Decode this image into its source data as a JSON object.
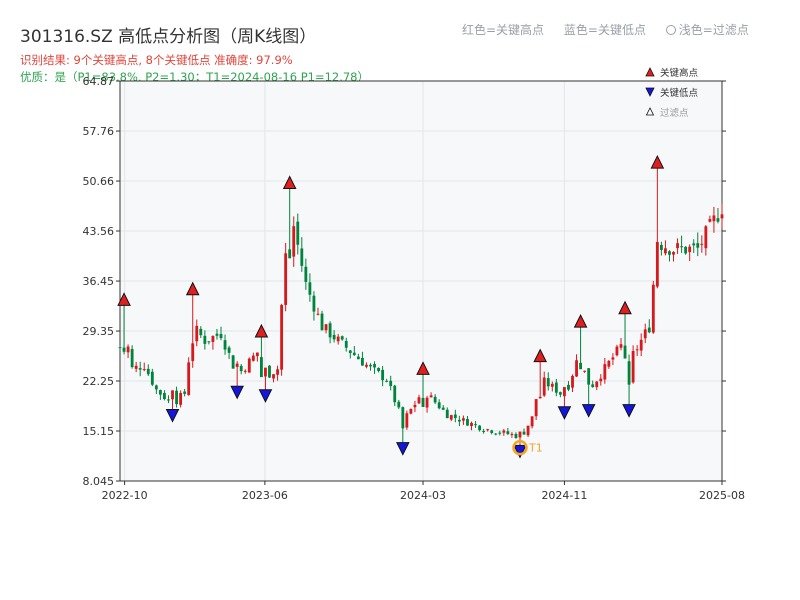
{
  "header": {
    "title": "301316.SZ 高低点分析图（周K线图）",
    "subtitle1": "识别结果: 9个关键高点, 8个关键低点  准确度: 97.9%",
    "subtitle2": "优质：是（P1=83.8%, P2=1.30；T1=2024-08-16 P1=12.78）"
  },
  "top_legend": {
    "red": "红色=关键高点",
    "blue": "蓝色=关键低点",
    "light": "浅色=过滤点"
  },
  "colors": {
    "up": "#d7191c",
    "down": "#00843d",
    "high": "#e02020",
    "low": "#1515e0",
    "grid": "#e3e6ea",
    "bg": "#f6f8fa",
    "t1": "#f5a623"
  },
  "chart_data": {
    "type": "candlestick",
    "title": "301316.SZ 高低点分析图（周K线图）",
    "xlabel": "",
    "ylabel": "",
    "xlim": [
      "2022-09-23",
      "2025-08-01"
    ],
    "ylim": [
      8.045,
      64.87
    ],
    "yticks": [
      "8.045",
      "15.15",
      "22.25",
      "29.35",
      "36.45",
      "43.56",
      "50.66",
      "57.76",
      "64.87"
    ],
    "xticks": [
      {
        "date": "2022-10-01",
        "label": "2022-10"
      },
      {
        "date": "2023-06-01",
        "label": "2023-06"
      },
      {
        "date": "2024-03-01",
        "label": "2024-03"
      },
      {
        "date": "2024-11-01",
        "label": "2024-11"
      },
      {
        "date": "2025-08-01",
        "label": "2025-08"
      }
    ],
    "legend": {
      "position": "top-right",
      "items": [
        "关键高点",
        "关键低点",
        "过滤点"
      ]
    },
    "key_highs": [
      {
        "date": "2022-09-30",
        "price": 33.0
      },
      {
        "date": "2023-01-27",
        "price": 34.5
      },
      {
        "date": "2023-05-26",
        "price": 28.5
      },
      {
        "date": "2023-07-14",
        "price": 49.6
      },
      {
        "date": "2024-03-01",
        "price": 23.2
      },
      {
        "date": "2024-09-20",
        "price": 25.0
      },
      {
        "date": "2024-11-29",
        "price": 29.9
      },
      {
        "date": "2025-02-14",
        "price": 31.8
      },
      {
        "date": "2025-04-11",
        "price": 52.5
      }
    ],
    "key_lows": [
      {
        "date": "2022-12-23",
        "price": 18.2
      },
      {
        "date": "2023-04-14",
        "price": 21.5
      },
      {
        "date": "2023-06-02",
        "price": 21.0
      },
      {
        "date": "2024-01-26",
        "price": 13.5
      },
      {
        "date": "2024-08-16",
        "price": 13.1
      },
      {
        "date": "2024-11-01",
        "price": 18.6
      },
      {
        "date": "2024-12-13",
        "price": 18.9
      },
      {
        "date": "2025-02-21",
        "price": 18.9
      }
    ],
    "t1_marker": {
      "label": "T1",
      "date": "2024-08-16",
      "price": 12.78
    },
    "anchors": [
      [
        "2022-09-23",
        27.0
      ],
      [
        "2022-09-30",
        30.0
      ],
      [
        "2022-10-14",
        24.0
      ],
      [
        "2022-11-04",
        24.5
      ],
      [
        "2022-11-25",
        21.0
      ],
      [
        "2022-12-23",
        19.0
      ],
      [
        "2023-01-13",
        20.5
      ],
      [
        "2023-01-27",
        30.0
      ],
      [
        "2023-02-17",
        28.0
      ],
      [
        "2023-03-17",
        29.0
      ],
      [
        "2023-04-14",
        23.0
      ],
      [
        "2023-05-05",
        25.0
      ],
      [
        "2023-05-26",
        27.0
      ],
      [
        "2023-06-02",
        23.0
      ],
      [
        "2023-06-23",
        24.0
      ],
      [
        "2023-06-30",
        33.0
      ],
      [
        "2023-07-14",
        47.0
      ],
      [
        "2023-08-11",
        36.0
      ],
      [
        "2023-09-08",
        30.0
      ],
      [
        "2023-10-06",
        28.0
      ],
      [
        "2023-11-03",
        26.0
      ],
      [
        "2023-12-01",
        24.0
      ],
      [
        "2023-12-29",
        22.5
      ],
      [
        "2024-01-26",
        16.5
      ],
      [
        "2024-02-16",
        19.0
      ],
      [
        "2024-03-01",
        21.0
      ],
      [
        "2024-04-12",
        17.5
      ],
      [
        "2024-06-14",
        15.5
      ],
      [
        "2024-08-09",
        14.5
      ],
      [
        "2024-08-16",
        14.0
      ],
      [
        "2024-09-06",
        17.0
      ],
      [
        "2024-09-20",
        22.5
      ],
      [
        "2024-10-18",
        21.0
      ],
      [
        "2024-11-01",
        20.0
      ],
      [
        "2024-11-22",
        25.0
      ],
      [
        "2024-11-29",
        26.0
      ],
      [
        "2024-12-13",
        21.0
      ],
      [
        "2025-01-10",
        24.0
      ],
      [
        "2025-02-14",
        28.0
      ],
      [
        "2025-02-21",
        25.0
      ],
      [
        "2025-03-14",
        28.0
      ],
      [
        "2025-03-28",
        30.0
      ],
      [
        "2025-04-11",
        42.0
      ],
      [
        "2025-05-09",
        41.0
      ],
      [
        "2025-06-20",
        41.0
      ],
      [
        "2025-08-01",
        47.0
      ]
    ]
  }
}
